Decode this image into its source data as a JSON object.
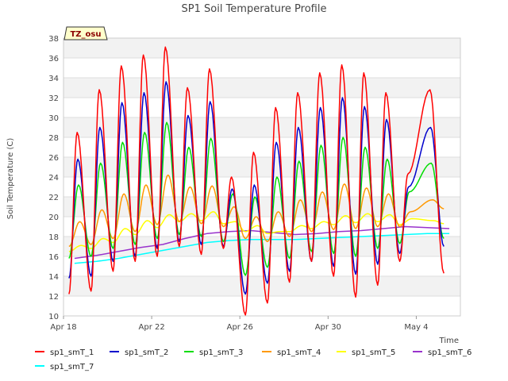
{
  "chart_data": {
    "type": "line",
    "title": "SP1 Soil Temperature Profile",
    "xlabel": "Time",
    "ylabel": "Soil Temperature (C)",
    "badge": "TZ_osu",
    "xlim": [
      "2024-04-18",
      "2024-05-06"
    ],
    "ylim": [
      10,
      38
    ],
    "y_ticks": [
      10,
      12,
      14,
      16,
      18,
      20,
      22,
      24,
      26,
      28,
      30,
      32,
      34,
      36,
      38
    ],
    "x_ticks": [
      {
        "date": "2024-04-18",
        "label": "Apr 18"
      },
      {
        "date": "2024-04-22",
        "label": "Apr 22"
      },
      {
        "date": "2024-04-26",
        "label": "Apr 26"
      },
      {
        "date": "2024-04-30",
        "label": "Apr 30"
      },
      {
        "date": "2024-05-04",
        "label": "May 4"
      }
    ],
    "grid": true,
    "legend_position": "bottom",
    "x": [
      "2024-04-18",
      "2024-04-19",
      "2024-04-20",
      "2024-04-21",
      "2024-04-22",
      "2024-04-23",
      "2024-04-24",
      "2024-04-25",
      "2024-04-26",
      "2024-04-27",
      "2024-04-28",
      "2024-04-29",
      "2024-04-30",
      "2024-05-01",
      "2024-05-02",
      "2024-05-03",
      "2024-05-04",
      "2024-05-05"
    ],
    "series": [
      {
        "name": "sp1_smT_1",
        "color": "#ff0000",
        "daily_max": [
          28.5,
          32.8,
          35.2,
          36.3,
          37.1,
          33.0,
          34.9,
          24.0,
          26.5,
          31.0,
          32.5,
          34.5,
          35.3,
          34.5,
          32.5,
          24.3,
          32.8,
          null
        ],
        "daily_min": [
          12.2,
          12.5,
          14.5,
          15.5,
          16.0,
          17.0,
          16.2,
          16.8,
          10.1,
          11.3,
          13.4,
          15.5,
          14.0,
          11.9,
          13.1,
          15.5,
          null,
          14.3
        ]
      },
      {
        "name": "sp1_smT_2",
        "color": "#0000cc",
        "daily_max": [
          25.8,
          29.0,
          31.5,
          32.5,
          33.6,
          30.2,
          31.6,
          22.8,
          23.2,
          27.5,
          29.0,
          31.0,
          32.0,
          31.1,
          29.8,
          23.0,
          29.0,
          null
        ],
        "daily_min": [
          13.8,
          14.0,
          15.5,
          16.0,
          16.8,
          17.5,
          17.2,
          17.0,
          12.2,
          13.3,
          14.5,
          15.5,
          15.0,
          14.2,
          15.2,
          16.3,
          null,
          17.0
        ]
      },
      {
        "name": "sp1_smT_3",
        "color": "#00dd00",
        "daily_max": [
          23.2,
          25.4,
          27.5,
          28.5,
          29.5,
          27.0,
          27.9,
          22.3,
          22.0,
          24.0,
          25.6,
          27.2,
          28.0,
          27.0,
          25.8,
          22.5,
          25.4,
          null
        ],
        "daily_min": [
          15.8,
          16.0,
          16.8,
          17.2,
          17.8,
          18.2,
          18.0,
          17.5,
          14.1,
          14.9,
          15.8,
          16.5,
          16.3,
          16.0,
          16.8,
          17.3,
          null,
          17.8
        ]
      },
      {
        "name": "sp1_smT_4",
        "color": "#ff9900",
        "daily_max": [
          19.5,
          20.7,
          22.3,
          23.2,
          24.2,
          23.0,
          23.1,
          21.0,
          20.0,
          20.5,
          21.7,
          22.5,
          23.3,
          22.9,
          22.3,
          20.5,
          21.7,
          null
        ],
        "daily_min": [
          17.0,
          17.2,
          17.8,
          18.5,
          19.2,
          19.5,
          19.3,
          19.0,
          17.8,
          17.5,
          18.0,
          18.5,
          18.7,
          18.8,
          19.0,
          19.0,
          null,
          20.8
        ]
      },
      {
        "name": "sp1_smT_5",
        "color": "#ffff00",
        "daily_max": [
          17.1,
          17.8,
          18.8,
          19.6,
          20.2,
          20.3,
          20.5,
          19.5,
          19.1,
          18.5,
          19.1,
          19.5,
          20.1,
          20.3,
          20.2,
          19.8,
          19.6,
          null
        ],
        "daily_min": [
          16.5,
          16.8,
          17.4,
          18.2,
          18.9,
          19.5,
          19.6,
          19.3,
          18.5,
          18.3,
          18.5,
          18.8,
          19.2,
          19.4,
          19.5,
          19.2,
          null,
          19.3
        ]
      },
      {
        "name": "sp1_smT_6",
        "color": "#9933cc",
        "values": [
          15.8,
          16.1,
          16.5,
          16.9,
          17.2,
          17.8,
          18.3,
          18.5,
          18.6,
          18.4,
          18.2,
          18.3,
          18.5,
          18.6,
          18.8,
          19.0,
          18.9,
          18.8
        ]
      },
      {
        "name": "sp1_smT_7",
        "color": "#00ffff",
        "values": [
          15.3,
          15.5,
          15.8,
          16.2,
          16.6,
          17.0,
          17.4,
          17.6,
          17.7,
          17.7,
          17.7,
          17.8,
          17.9,
          18.0,
          18.1,
          18.2,
          18.3,
          18.3
        ]
      }
    ]
  }
}
